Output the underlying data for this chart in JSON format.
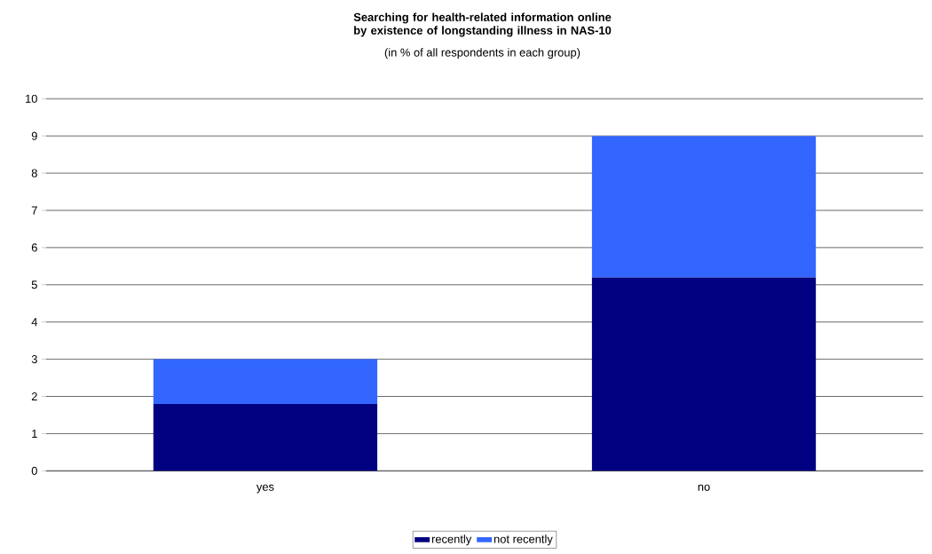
{
  "chart_data": {
    "type": "bar",
    "title": "Searching for health-related information online by existence of longstanding illness in NAS-10",
    "subtitle": "(in % of all respondents in each group)",
    "categories": [
      "yes",
      "no"
    ],
    "stacked": true,
    "series": [
      {
        "name": "recently",
        "color": "#000080",
        "values": [
          1.8,
          5.2
        ]
      },
      {
        "name": "not recently",
        "color": "#3366ff",
        "values": [
          1.2,
          3.8
        ]
      }
    ],
    "ylim": [
      0,
      10
    ],
    "yticks": [
      0,
      1,
      2,
      3,
      4,
      5,
      6,
      7,
      8,
      9,
      10
    ],
    "grid": "y",
    "legend": "bottom"
  }
}
